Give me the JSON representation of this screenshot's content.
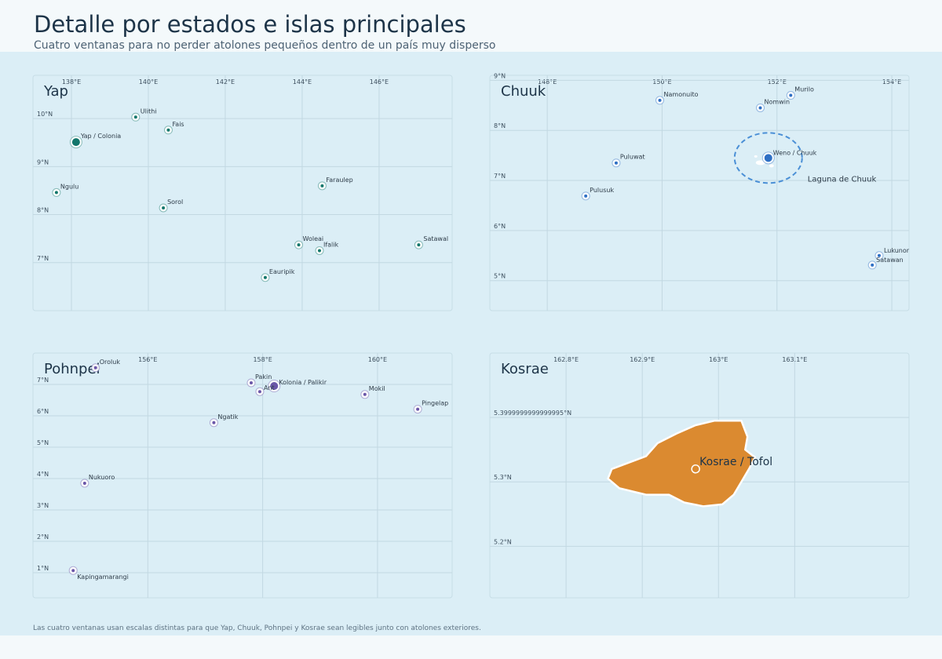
{
  "title": "Detalle por estados e islas principales",
  "subtitle": "Cuatro ventanas para no perder atolones pequeños dentro de un país muy disperso",
  "footnote": "Las cuatro ventanas usan escalas distintas para que Yap, Chuuk, Pohnpei y Kosrae sean legibles junto con atolones exteriores.",
  "colors": {
    "yap": "#12766b",
    "chuuk": "#2e6fc4",
    "pohnpei": "#6b56a8",
    "kosrae": "#db8a30",
    "grid": "#c2d8e2",
    "water": "#dbeef6"
  },
  "map_data": {
    "panels": [
      {
        "id": "yap",
        "title": "Yap",
        "lon_range": [
          137.0,
          147.9
        ],
        "lat_range": [
          6.0,
          10.9
        ],
        "lon_ticks": [
          {
            "value": 138,
            "label": "138°E"
          },
          {
            "value": 140,
            "label": "140°E"
          },
          {
            "value": 142,
            "label": "142°E"
          },
          {
            "value": 144,
            "label": "144°E"
          },
          {
            "value": 146,
            "label": "146°E"
          }
        ],
        "lat_ticks": [
          {
            "value": 10,
            "label": "10°N"
          },
          {
            "value": 9,
            "label": "9°N"
          },
          {
            "value": 8,
            "label": "8°N"
          },
          {
            "value": 7,
            "label": "7°N"
          }
        ],
        "places": [
          {
            "name": "Yap / Colonia",
            "lon": 138.12,
            "lat": 9.51,
            "capital": true
          },
          {
            "name": "Ulithi",
            "lon": 139.67,
            "lat": 10.03
          },
          {
            "name": "Fais",
            "lon": 140.52,
            "lat": 9.76
          },
          {
            "name": "Ngulu",
            "lon": 137.61,
            "lat": 8.46
          },
          {
            "name": "Sorol",
            "lon": 140.39,
            "lat": 8.14
          },
          {
            "name": "Faraulep",
            "lon": 144.52,
            "lat": 8.6
          },
          {
            "name": "Woleai",
            "lon": 143.91,
            "lat": 7.37
          },
          {
            "name": "Ifalik",
            "lon": 144.45,
            "lat": 7.25
          },
          {
            "name": "Satawal",
            "lon": 147.03,
            "lat": 7.37
          },
          {
            "name": "Eauripik",
            "lon": 143.04,
            "lat": 6.69
          }
        ]
      },
      {
        "id": "chuuk",
        "title": "Chuuk",
        "lon_range": [
          147.0,
          154.3
        ],
        "lat_range": [
          4.4,
          9.1
        ],
        "lon_ticks": [
          {
            "value": 148,
            "label": "148°E"
          },
          {
            "value": 150,
            "label": "150°E"
          },
          {
            "value": 152,
            "label": "152°E"
          },
          {
            "value": 154,
            "label": "154°E"
          }
        ],
        "lat_ticks": [
          {
            "value": 9,
            "label": "9°N"
          },
          {
            "value": 8,
            "label": "8°N"
          },
          {
            "value": 7,
            "label": "7°N"
          },
          {
            "value": 6,
            "label": "6°N"
          },
          {
            "value": 5,
            "label": "5°N"
          }
        ],
        "places": [
          {
            "name": "Weno / Chuuk",
            "lon": 151.85,
            "lat": 7.45,
            "capital": true
          },
          {
            "name": "Murilo",
            "lon": 152.24,
            "lat": 8.7
          },
          {
            "name": "Nomwin",
            "lon": 151.71,
            "lat": 8.45
          },
          {
            "name": "Namonuito",
            "lon": 149.96,
            "lat": 8.6
          },
          {
            "name": "Puluwat",
            "lon": 149.2,
            "lat": 7.35
          },
          {
            "name": "Pulusuk",
            "lon": 148.67,
            "lat": 6.69
          },
          {
            "name": "Lukunor",
            "lon": 153.78,
            "lat": 5.5
          },
          {
            "name": "Satawan",
            "lon": 153.66,
            "lat": 5.31
          }
        ],
        "area_label": "Laguna de Chuuk"
      },
      {
        "id": "pohnpei",
        "title": "Pohnpei",
        "lon_range": [
          154.0,
          161.3
        ],
        "lat_range": [
          0.2,
          8.0
        ],
        "lon_ticks": [
          {
            "value": 156,
            "label": "156°E"
          },
          {
            "value": 158,
            "label": "158°E"
          },
          {
            "value": 160,
            "label": "160°E"
          }
        ],
        "lat_ticks": [
          {
            "value": 7,
            "label": "7°N"
          },
          {
            "value": 6,
            "label": "6°N"
          },
          {
            "value": 5,
            "label": "5°N"
          },
          {
            "value": 4,
            "label": "4°N"
          },
          {
            "value": 3,
            "label": "3°N"
          },
          {
            "value": 2,
            "label": "2°N"
          },
          {
            "value": 1,
            "label": "1°N"
          }
        ],
        "places": [
          {
            "name": "Kolonia / Palikir",
            "lon": 158.2,
            "lat": 6.95,
            "capital": true
          },
          {
            "name": "Oroluk",
            "lon": 155.09,
            "lat": 7.53
          },
          {
            "name": "Pakin",
            "lon": 157.8,
            "lat": 7.05
          },
          {
            "name": "Ant",
            "lon": 157.95,
            "lat": 6.77
          },
          {
            "name": "Mokil",
            "lon": 159.78,
            "lat": 6.68
          },
          {
            "name": "Pingelap",
            "lon": 160.7,
            "lat": 6.21
          },
          {
            "name": "Ngatik",
            "lon": 157.15,
            "lat": 5.78
          },
          {
            "name": "Nukuoro",
            "lon": 154.9,
            "lat": 3.85
          },
          {
            "name": "Kapingamarangi",
            "lon": 154.7,
            "lat": 1.07
          }
        ]
      },
      {
        "id": "kosrae",
        "title": "Kosrae",
        "lon_range": [
          162.7,
          163.25
        ],
        "lat_range": [
          5.12,
          5.5
        ],
        "lon_ticks": [
          {
            "value": 162.8,
            "label": "162.8°E"
          },
          {
            "value": 162.9,
            "label": "162.9°E"
          },
          {
            "value": 163.0,
            "label": "163°E"
          },
          {
            "value": 163.1,
            "label": "163.1°E"
          }
        ],
        "lat_ticks": [
          {
            "value": 5.4,
            "label": "5.3999999999999995°N"
          },
          {
            "value": 5.3,
            "label": "5.3°N"
          },
          {
            "value": 5.2,
            "label": "5.2°N"
          }
        ],
        "places": [
          {
            "name": "Kosrae / Tofol",
            "lon": 162.97,
            "lat": 5.32,
            "capital": true
          }
        ]
      }
    ]
  }
}
